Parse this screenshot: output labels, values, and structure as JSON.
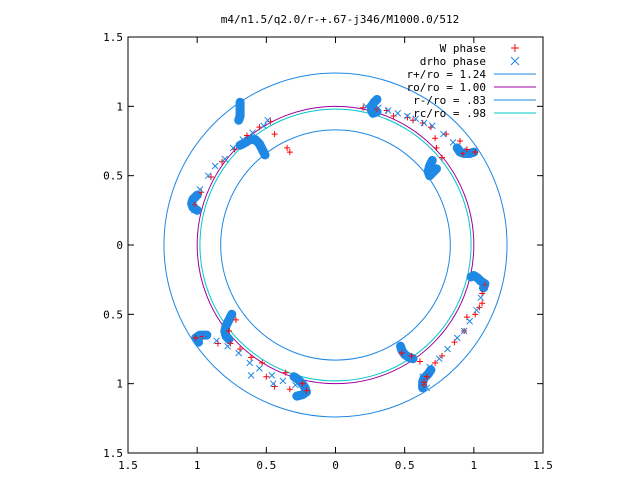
{
  "chart_data": {
    "type": "scatter",
    "title": "m4/n1.5/q2.0/r-+.67-j346/M1000.0/512",
    "xlabel": "",
    "ylabel": "",
    "xlim": [
      -1.5,
      1.5
    ],
    "ylim": [
      -1.5,
      1.5
    ],
    "x_tick_values": [
      -1.5,
      -1,
      -0.5,
      0,
      0.5,
      1,
      1.5
    ],
    "x_tick_labels": [
      "1.5",
      "1",
      "0.5",
      "0",
      "0.5",
      "1",
      "1.5"
    ],
    "y_tick_values": [
      1.5,
      1,
      0.5,
      0,
      -0.5,
      -1,
      -1.5
    ],
    "y_tick_labels": [
      "1.5",
      "1",
      "0.5",
      "0",
      "0.5",
      "1",
      "1.5"
    ],
    "grid": false,
    "legend_position": "top-right",
    "series": [
      {
        "name": "W phase",
        "kind": "points",
        "marker": "plus",
        "color": "#ff0000",
        "points": [
          [
            -1.02,
            0.29
          ],
          [
            -0.97,
            0.38
          ],
          [
            -0.9,
            0.49
          ],
          [
            -0.82,
            0.6
          ],
          [
            -0.73,
            0.69
          ],
          [
            -0.64,
            0.79
          ],
          [
            -0.55,
            0.85
          ],
          [
            -0.47,
            0.89
          ],
          [
            -0.44,
            0.8
          ],
          [
            -0.35,
            0.7
          ],
          [
            -0.33,
            0.67
          ],
          [
            0.2,
            0.99
          ],
          [
            0.3,
            0.98
          ],
          [
            0.37,
            0.97
          ],
          [
            0.42,
            0.93
          ],
          [
            0.52,
            0.92
          ],
          [
            0.56,
            0.9
          ],
          [
            0.63,
            0.88
          ],
          [
            0.69,
            0.85
          ],
          [
            0.72,
            0.77
          ],
          [
            0.73,
            0.7
          ],
          [
            0.77,
            0.63
          ],
          [
            0.8,
            0.8
          ],
          [
            0.9,
            0.75
          ],
          [
            0.92,
            0.66
          ],
          [
            0.95,
            0.69
          ],
          [
            1.01,
            0.67
          ],
          [
            1.06,
            -0.35
          ],
          [
            1.08,
            -0.29
          ],
          [
            1.06,
            -0.42
          ],
          [
            1.04,
            -0.45
          ],
          [
            1.01,
            -0.5
          ],
          [
            0.95,
            -0.52
          ],
          [
            0.93,
            -0.62
          ],
          [
            0.86,
            -0.7
          ],
          [
            0.77,
            -0.8
          ],
          [
            0.72,
            -0.85
          ],
          [
            0.66,
            -0.95
          ],
          [
            0.64,
            -0.99
          ],
          [
            0.64,
            -1.01
          ],
          [
            0.61,
            -0.84
          ],
          [
            0.55,
            -0.8
          ],
          [
            0.48,
            -0.78
          ],
          [
            -0.36,
            -0.92
          ],
          [
            -0.33,
            -1.04
          ],
          [
            -0.44,
            -1.02
          ],
          [
            -0.5,
            -0.95
          ],
          [
            -0.53,
            -0.85
          ],
          [
            -0.61,
            -0.81
          ],
          [
            -0.69,
            -0.75
          ],
          [
            -0.76,
            -0.71
          ],
          [
            -0.85,
            -0.71
          ],
          [
            -0.96,
            -0.66
          ],
          [
            -1.01,
            -0.67
          ],
          [
            -0.72,
            -0.54
          ],
          [
            -0.77,
            -0.62
          ],
          [
            -0.24,
            -1.0
          ],
          [
            -0.21,
            -1.05
          ]
        ]
      },
      {
        "name": "drho phase",
        "kind": "points",
        "marker": "cross",
        "color": "#1e88e5",
        "points": [
          [
            -1.03,
            0.28
          ],
          [
            -1.02,
            0.25
          ],
          [
            -0.98,
            0.4
          ],
          [
            -0.92,
            0.5
          ],
          [
            -0.87,
            0.57
          ],
          [
            -0.8,
            0.62
          ],
          [
            -0.74,
            0.7
          ],
          [
            -0.67,
            0.76
          ],
          [
            -0.6,
            0.81
          ],
          [
            -0.52,
            0.86
          ],
          [
            -0.49,
            0.9
          ],
          [
            0.22,
            1.0
          ],
          [
            0.31,
            0.99
          ],
          [
            0.38,
            0.97
          ],
          [
            0.45,
            0.95
          ],
          [
            0.52,
            0.93
          ],
          [
            0.58,
            0.91
          ],
          [
            0.64,
            0.88
          ],
          [
            0.7,
            0.86
          ],
          [
            0.78,
            0.8
          ],
          [
            0.85,
            0.74
          ],
          [
            0.92,
            0.68
          ],
          [
            1.08,
            -0.3
          ],
          [
            1.05,
            -0.38
          ],
          [
            1.02,
            -0.47
          ],
          [
            0.97,
            -0.55
          ],
          [
            0.93,
            -0.62
          ],
          [
            0.88,
            -0.67
          ],
          [
            0.81,
            -0.75
          ],
          [
            0.75,
            -0.82
          ],
          [
            0.68,
            -0.88
          ],
          [
            0.63,
            -0.95
          ],
          [
            0.66,
            -1.03
          ],
          [
            -0.29,
            -1.01
          ],
          [
            -0.38,
            -0.98
          ],
          [
            -0.46,
            -0.94
          ],
          [
            -0.55,
            -0.89
          ],
          [
            -0.62,
            -0.85
          ],
          [
            -0.7,
            -0.78
          ],
          [
            -0.78,
            -0.73
          ],
          [
            -0.86,
            -0.69
          ],
          [
            -0.95,
            -0.66
          ],
          [
            -0.61,
            -0.94
          ],
          [
            -0.45,
            -1.0
          ]
        ]
      },
      {
        "name": "r+/ro = 1.24",
        "kind": "circle",
        "radius": 1.24,
        "color": "#1e88e5"
      },
      {
        "name": "ro/ro = 1.00",
        "kind": "circle",
        "radius": 1.0,
        "color": "#a000a0"
      },
      {
        "name": "r-/ro = .83",
        "kind": "circle",
        "radius": 0.83,
        "color": "#1e88e5"
      },
      {
        "name": "rc/ro = .98",
        "kind": "circle",
        "radius": 0.98,
        "color": "#00c8c8"
      }
    ],
    "blobs": [
      {
        "points": [
          [
            -1.0,
            0.25
          ],
          [
            -1.03,
            0.27
          ],
          [
            -1.04,
            0.3
          ],
          [
            -1.03,
            0.33
          ],
          [
            -1.01,
            0.35
          ],
          [
            -1.0,
            0.36
          ]
        ]
      },
      {
        "points": [
          [
            -0.69,
            0.72
          ],
          [
            -0.65,
            0.74
          ],
          [
            -0.62,
            0.76
          ],
          [
            -0.58,
            0.76
          ],
          [
            -0.55,
            0.73
          ],
          [
            -0.53,
            0.69
          ],
          [
            -0.51,
            0.65
          ]
        ]
      },
      {
        "points": [
          [
            -0.69,
            1.03
          ],
          [
            -0.69,
            0.99
          ],
          [
            -0.69,
            0.96
          ],
          [
            -0.69,
            0.93
          ],
          [
            -0.7,
            0.9
          ]
        ]
      },
      {
        "points": [
          [
            0.3,
            1.05
          ],
          [
            0.28,
            1.03
          ],
          [
            0.26,
            1.0
          ],
          [
            0.26,
            0.97
          ],
          [
            0.27,
            0.95
          ],
          [
            0.3,
            0.96
          ]
        ]
      },
      {
        "points": [
          [
            0.73,
            0.55
          ],
          [
            0.7,
            0.52
          ],
          [
            0.68,
            0.5
          ],
          [
            0.67,
            0.53
          ],
          [
            0.68,
            0.57
          ],
          [
            0.7,
            0.61
          ]
        ]
      },
      {
        "points": [
          [
            0.88,
            0.7
          ],
          [
            0.9,
            0.67
          ],
          [
            0.93,
            0.66
          ],
          [
            0.97,
            0.66
          ],
          [
            1.0,
            0.67
          ]
        ]
      },
      {
        "points": [
          [
            0.98,
            -0.23
          ],
          [
            1.0,
            -0.22
          ],
          [
            1.03,
            -0.24
          ],
          [
            1.05,
            -0.26
          ],
          [
            1.08,
            -0.28
          ],
          [
            1.07,
            -0.31
          ]
        ]
      },
      {
        "points": [
          [
            0.47,
            -0.73
          ],
          [
            0.48,
            -0.76
          ],
          [
            0.5,
            -0.79
          ],
          [
            0.53,
            -0.81
          ],
          [
            0.56,
            -0.82
          ]
        ]
      },
      {
        "points": [
          [
            0.63,
            -1.03
          ],
          [
            0.63,
            -0.99
          ],
          [
            0.64,
            -0.96
          ],
          [
            0.67,
            -0.93
          ],
          [
            0.69,
            -0.9
          ]
        ]
      },
      {
        "points": [
          [
            -0.75,
            -0.5
          ],
          [
            -0.77,
            -0.54
          ],
          [
            -0.79,
            -0.58
          ],
          [
            -0.8,
            -0.62
          ],
          [
            -0.79,
            -0.66
          ],
          [
            -0.77,
            -0.68
          ]
        ]
      },
      {
        "points": [
          [
            -0.93,
            -0.65
          ],
          [
            -0.98,
            -0.65
          ],
          [
            -1.01,
            -0.67
          ],
          [
            -0.99,
            -0.7
          ]
        ]
      },
      {
        "points": [
          [
            -0.3,
            -0.95
          ],
          [
            -0.27,
            -0.97
          ],
          [
            -0.24,
            -1.0
          ],
          [
            -0.22,
            -1.03
          ],
          [
            -0.21,
            -1.06
          ],
          [
            -0.24,
            -1.08
          ],
          [
            -0.28,
            -1.09
          ]
        ]
      }
    ]
  }
}
